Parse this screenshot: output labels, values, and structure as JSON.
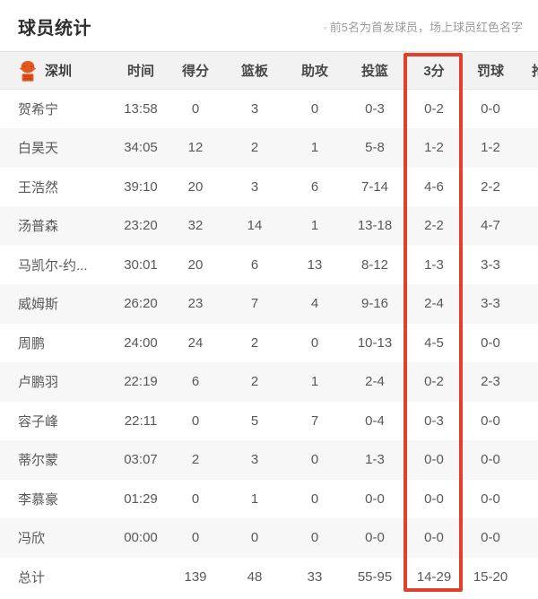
{
  "header": {
    "title": "球员统计",
    "note_bullet": "◦",
    "note_text": "前5名为首发球员，场上球员红色名字"
  },
  "table": {
    "team_name": "深圳",
    "team_logo_icon": "shenzhen-team-logo",
    "column_headers": {
      "time": "时间",
      "points": "得分",
      "rebounds": "篮板",
      "assists": "助攻",
      "field_goals": "投篮",
      "three_points": "3分",
      "free_throws": "罚球",
      "partial_next": "抢断"
    },
    "rows": [
      {
        "name": "贺希宁",
        "time": "13:58",
        "points": "0",
        "rebounds": "3",
        "assists": "0",
        "field_goals": "0-3",
        "three_points": "0-2",
        "free_throws": "0-0"
      },
      {
        "name": "白昊天",
        "time": "34:05",
        "points": "12",
        "rebounds": "2",
        "assists": "1",
        "field_goals": "5-8",
        "three_points": "1-2",
        "free_throws": "1-2"
      },
      {
        "name": "王浩然",
        "time": "39:10",
        "points": "20",
        "rebounds": "3",
        "assists": "6",
        "field_goals": "7-14",
        "three_points": "4-6",
        "free_throws": "2-2"
      },
      {
        "name": "汤普森",
        "time": "23:20",
        "points": "32",
        "rebounds": "14",
        "assists": "1",
        "field_goals": "13-18",
        "three_points": "2-2",
        "free_throws": "4-7"
      },
      {
        "name": "马凯尔-约...",
        "time": "30:01",
        "points": "20",
        "rebounds": "6",
        "assists": "13",
        "field_goals": "8-12",
        "three_points": "1-3",
        "free_throws": "3-3"
      },
      {
        "name": "威姆斯",
        "time": "26:20",
        "points": "23",
        "rebounds": "7",
        "assists": "4",
        "field_goals": "9-16",
        "three_points": "2-4",
        "free_throws": "3-3"
      },
      {
        "name": "周鹏",
        "time": "24:00",
        "points": "24",
        "rebounds": "2",
        "assists": "0",
        "field_goals": "10-13",
        "three_points": "4-5",
        "free_throws": "0-0"
      },
      {
        "name": "卢鹏羽",
        "time": "22:19",
        "points": "6",
        "rebounds": "2",
        "assists": "1",
        "field_goals": "2-4",
        "three_points": "0-2",
        "free_throws": "2-3"
      },
      {
        "name": "容子峰",
        "time": "22:11",
        "points": "0",
        "rebounds": "5",
        "assists": "7",
        "field_goals": "0-4",
        "three_points": "0-3",
        "free_throws": "0-0"
      },
      {
        "name": "蒂尔蒙",
        "time": "03:07",
        "points": "2",
        "rebounds": "3",
        "assists": "0",
        "field_goals": "1-3",
        "three_points": "0-0",
        "free_throws": "0-0"
      },
      {
        "name": "李慕豪",
        "time": "01:29",
        "points": "0",
        "rebounds": "1",
        "assists": "0",
        "field_goals": "0-0",
        "three_points": "0-0",
        "free_throws": "0-0"
      },
      {
        "name": "冯欣",
        "time": "00:00",
        "points": "0",
        "rebounds": "0",
        "assists": "0",
        "field_goals": "0-0",
        "three_points": "0-0",
        "free_throws": "0-0"
      }
    ],
    "total_row": {
      "label": "总计",
      "time": "",
      "points": "139",
      "rebounds": "48",
      "assists": "33",
      "field_goals": "55-95",
      "three_points": "14-29",
      "free_throws": "15-20"
    }
  },
  "highlight": {
    "column_label": "3分",
    "box_color": "#e2402c"
  },
  "colors": {
    "header_row_bg": "#f2f2f2",
    "alt_row_bg": "#f7f7f7",
    "body_text": "#585858",
    "note_text": "#9c9c9c",
    "logo_orange": "#e5571f",
    "logo_dark_orange": "#b33c12"
  }
}
